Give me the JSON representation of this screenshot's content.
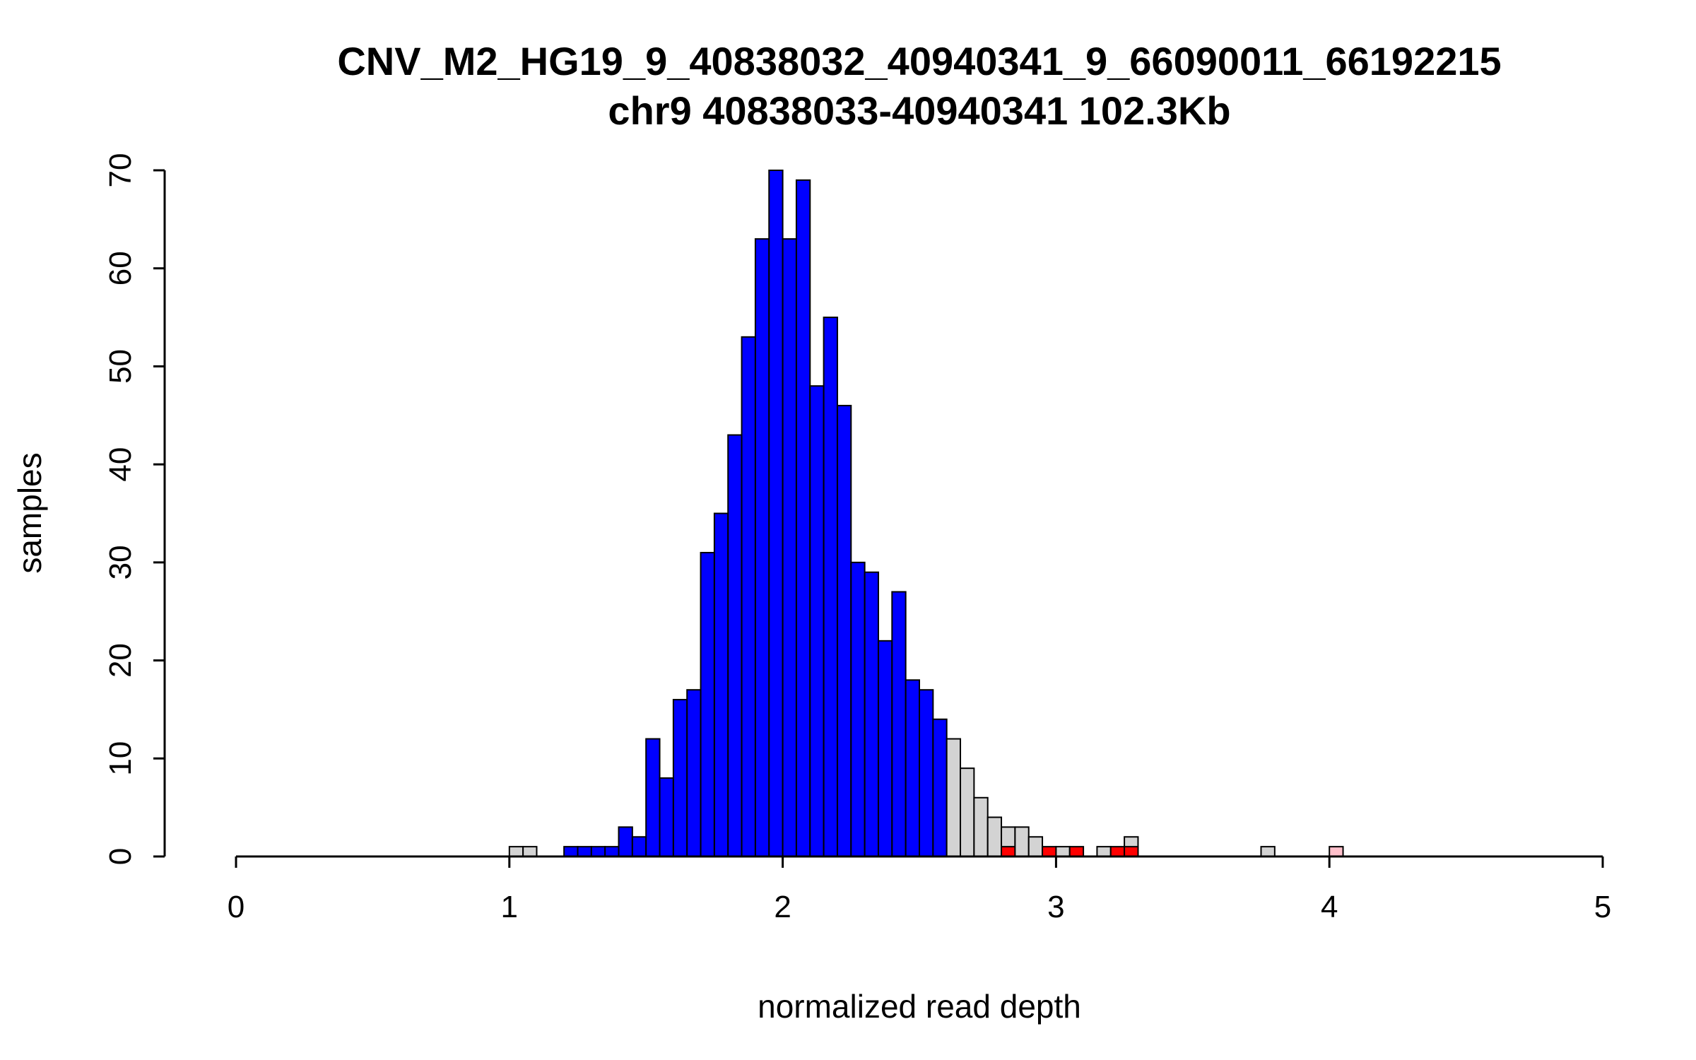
{
  "chart_data": {
    "type": "bar",
    "subtype": "histogram",
    "title": "CNV_M2_HG19_9_40838032_40940341_9_66090011_66192215",
    "subtitle": "chr9 40838033-40940341 102.3Kb",
    "xlabel": "normalized read depth",
    "ylabel": "samples",
    "xlim": [
      0,
      5
    ],
    "ylim": [
      0,
      70
    ],
    "x_ticks": [
      0,
      1,
      2,
      3,
      4,
      5
    ],
    "y_ticks": [
      0,
      10,
      20,
      30,
      40,
      50,
      60,
      70
    ],
    "grid": false,
    "legend": null,
    "bin_width": 0.05,
    "colors": {
      "blue": "#0000FF",
      "gray": "#D3D3D3",
      "red": "#FF0000",
      "pink": "#FFC0CB",
      "axis": "#000000",
      "bar_border": "#000000"
    },
    "bars": [
      {
        "x": 1.0,
        "h": 1,
        "color": "gray"
      },
      {
        "x": 1.05,
        "h": 1,
        "color": "gray"
      },
      {
        "x": 1.2,
        "h": 1,
        "color": "blue"
      },
      {
        "x": 1.25,
        "h": 1,
        "color": "blue"
      },
      {
        "x": 1.3,
        "h": 1,
        "color": "blue"
      },
      {
        "x": 1.35,
        "h": 1,
        "color": "blue"
      },
      {
        "x": 1.4,
        "h": 3,
        "color": "blue"
      },
      {
        "x": 1.45,
        "h": 2,
        "color": "blue"
      },
      {
        "x": 1.5,
        "h": 12,
        "color": "blue"
      },
      {
        "x": 1.55,
        "h": 8,
        "color": "blue"
      },
      {
        "x": 1.6,
        "h": 16,
        "color": "blue"
      },
      {
        "x": 1.65,
        "h": 17,
        "color": "blue"
      },
      {
        "x": 1.7,
        "h": 31,
        "color": "blue"
      },
      {
        "x": 1.75,
        "h": 35,
        "color": "blue"
      },
      {
        "x": 1.8,
        "h": 43,
        "color": "blue"
      },
      {
        "x": 1.85,
        "h": 53,
        "color": "blue"
      },
      {
        "x": 1.9,
        "h": 63,
        "color": "blue"
      },
      {
        "x": 1.95,
        "h": 70,
        "color": "blue"
      },
      {
        "x": 2.0,
        "h": 63,
        "color": "blue"
      },
      {
        "x": 2.05,
        "h": 69,
        "color": "blue"
      },
      {
        "x": 2.1,
        "h": 48,
        "color": "blue"
      },
      {
        "x": 2.15,
        "h": 55,
        "color": "blue"
      },
      {
        "x": 2.2,
        "h": 46,
        "color": "blue"
      },
      {
        "x": 2.25,
        "h": 30,
        "color": "blue"
      },
      {
        "x": 2.3,
        "h": 29,
        "color": "blue"
      },
      {
        "x": 2.35,
        "h": 22,
        "color": "blue"
      },
      {
        "x": 2.4,
        "h": 27,
        "color": "blue"
      },
      {
        "x": 2.45,
        "h": 18,
        "color": "blue"
      },
      {
        "x": 2.5,
        "h": 17,
        "color": "blue"
      },
      {
        "x": 2.55,
        "h": 14,
        "color": "blue"
      },
      {
        "x": 2.6,
        "h": 12,
        "color": "gray"
      },
      {
        "x": 2.65,
        "h": 9,
        "color": "gray"
      },
      {
        "x": 2.7,
        "h": 6,
        "color": "gray"
      },
      {
        "x": 2.75,
        "h": 4,
        "color": "gray"
      },
      {
        "x": 2.8,
        "h": 3,
        "color": "gray"
      },
      {
        "x": 2.8,
        "h": 1,
        "color": "red"
      },
      {
        "x": 2.85,
        "h": 3,
        "color": "gray"
      },
      {
        "x": 2.9,
        "h": 2,
        "color": "gray"
      },
      {
        "x": 2.95,
        "h": 1,
        "color": "red"
      },
      {
        "x": 3.0,
        "h": 1,
        "color": "gray"
      },
      {
        "x": 3.05,
        "h": 1,
        "color": "red"
      },
      {
        "x": 3.15,
        "h": 1,
        "color": "gray"
      },
      {
        "x": 3.2,
        "h": 1,
        "color": "red"
      },
      {
        "x": 3.25,
        "h": 2,
        "color": "gray"
      },
      {
        "x": 3.25,
        "h": 1,
        "color": "red"
      },
      {
        "x": 3.75,
        "h": 1,
        "color": "gray"
      },
      {
        "x": 4.0,
        "h": 1,
        "color": "pink"
      }
    ]
  }
}
